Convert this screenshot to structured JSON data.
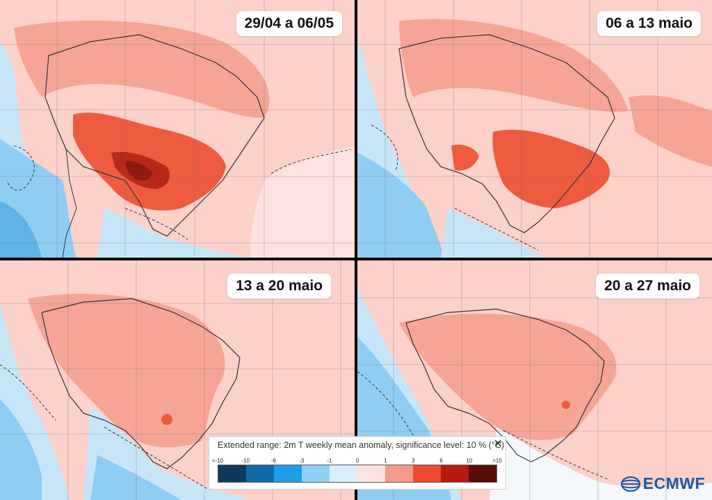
{
  "panels": [
    {
      "label": "29/04 a 06/05"
    },
    {
      "label": "06 a 13 maio"
    },
    {
      "label": "13 a 20 maio"
    },
    {
      "label": "20 a 27 maio"
    }
  ],
  "legend": {
    "title": "Extended range: 2m T weekly mean anomaly, significance level: 10 % (°C)",
    "ticks": [
      "<-10",
      "-10",
      "-6",
      "-3",
      "-1",
      "0",
      "1",
      "3",
      "6",
      "10",
      ">10"
    ],
    "colors": [
      "#0d3a5c",
      "#0f6aa8",
      "#1f9ee8",
      "#8fd0f5",
      "#d9eefb",
      "#fde3df",
      "#f59a8a",
      "#ee4a2e",
      "#b81a0e",
      "#5a0d08"
    ]
  },
  "logo": {
    "text": "ECMWF",
    "color": "#1b5aa8"
  },
  "colors": {
    "land_light": "#fbd1c9",
    "land_mid": "#f6a595",
    "hot": "#ef5b3f",
    "very_hot": "#c73a24",
    "extreme": "#8c1a10",
    "ocean_cool": "#c6e6f8",
    "ocean_cold": "#8fcdf2",
    "ocean_white": "#f4f8fb"
  }
}
